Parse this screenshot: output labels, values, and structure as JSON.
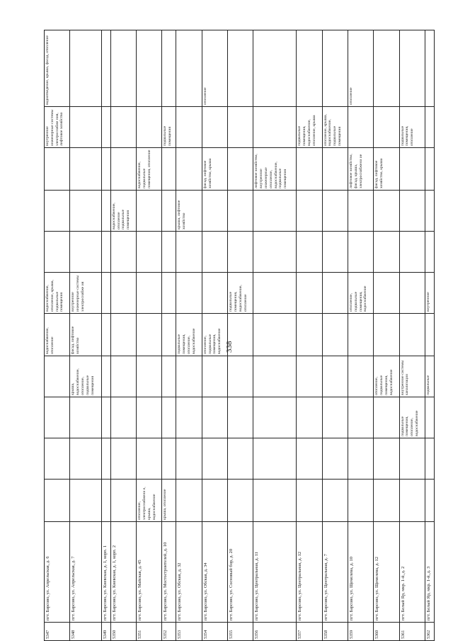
{
  "page_number": "338",
  "rows": [
    {
      "num": "5347",
      "address": "пгт. Барсово, ул. Апрельская, д. 6",
      "cells": [
        "",
        "",
        "",
        "",
        "водоснабжение, отопление",
        "водоснабжение, отопление, крыша, подвальные помещения",
        "",
        "",
        "",
        "внутренние инженерные системы электроснабже ния, лифтовое хозяйство",
        "водоотведение, крыша, фасад, отопление"
      ]
    },
    {
      "num": "5348",
      "address": "пгт. Барсово, ул. Апрельская, д. 7",
      "cells": [
        "",
        "",
        "",
        "крыша, водоснабжение, отопление, подвальные помещения",
        "фасад, лифтовое хозяйство",
        "внутренние инженерные системы электроснабже ия",
        "",
        "",
        "",
        "",
        ""
      ]
    },
    {
      "num": "5349",
      "address": "пгт. Барсово, ул. Киевская, д. 1, корп. 1",
      "cells": [
        "",
        "",
        "",
        "",
        "",
        "",
        "",
        "",
        "",
        "",
        ""
      ]
    },
    {
      "num": "5350",
      "address": "пгт. Барсово, ул. Киевская, д. 1, корп. 2",
      "cells": [
        "",
        "",
        "",
        "",
        "",
        "",
        "",
        "водоснабжение, отопление подвальные помещения",
        "",
        "",
        ""
      ]
    },
    {
      "num": "5351",
      "address": "пгт. Барсово, ул. Майская, д. 45",
      "cells": [
        "отопление, электроснабжени е, крыша, водоснабжение",
        "",
        "",
        "",
        "",
        "",
        "",
        "",
        "водоснабжение, подвальные помещения, отопление",
        "",
        ""
      ]
    },
    {
      "num": "5352",
      "address": "пгт. Барсово, ул. Мостостроителей, д. 10",
      "cells": [
        "крыша, отопление",
        "",
        "",
        "",
        "",
        "",
        "",
        "",
        "",
        "подвальные помещения",
        ""
      ]
    },
    {
      "num": "5353",
      "address": "пгт. Барсово, ул. Обская, д. 32",
      "cells": [
        "",
        "",
        "",
        "",
        "подвальные помещения, отопление, водоснабжение",
        "",
        "",
        "крыша, лифтовое хозяйство",
        "",
        "",
        ""
      ]
    },
    {
      "num": "5354",
      "address": "пгт. Барсово, ул. Обская, д. 34",
      "cells": [
        "",
        "",
        "",
        "",
        "отопление, подвальные помещения, водоснабжение",
        "",
        "",
        "",
        "фасад, лифтовое хозяйство, крыша",
        "",
        "отопление"
      ]
    },
    {
      "num": "5355",
      "address": "пгт. Барсово, ул. Сосновый бор, д. 20",
      "cells": [
        "",
        "",
        "",
        "",
        "",
        "подвальные помещения, водоснабжение, отопление",
        "",
        "",
        "",
        "",
        ""
      ]
    },
    {
      "num": "5356",
      "address": "пгт. Барсово, ул. Центральная, д. 11",
      "cells": [
        "",
        "",
        "",
        "",
        "",
        "",
        "",
        "",
        "лифтовое хозяйство, внутренние инженерные отопление, водоснабжение, подвальные помещения",
        "",
        ""
      ]
    },
    {
      "num": "5357",
      "address": "пгт. Барсово, ул. Центральная, д. 12",
      "cells": [
        "",
        "",
        "",
        "",
        "",
        "",
        "",
        "",
        "",
        "подвальные помещения, водоснабжение, отопление, крыша",
        ""
      ]
    },
    {
      "num": "5358",
      "address": "пгт. Барсово, ул. Центральная, д. 7",
      "cells": [
        "",
        "",
        "",
        "",
        "",
        "",
        "",
        "",
        "",
        "отопление, крыша, водоснабжение, подвальные помещения",
        ""
      ]
    },
    {
      "num": "5359",
      "address": "пгт. Барсово, ул. Щемелева, д. 10",
      "cells": [
        "",
        "",
        "",
        "",
        "",
        "отопление, подвальные помещения, водоснабжение",
        "",
        "",
        "лифтовое хозяйство, фасад, крыша, электроснабжени ие",
        "",
        "отопление"
      ]
    },
    {
      "num": "5360",
      "address": "пгт. Барсово, ул. Щемелева, д. 12",
      "cells": [
        "",
        "",
        "",
        "отопление, подвальные помещения, водоснабжение",
        "",
        "",
        "",
        "",
        "фасад, лифтовое хозяйство, крыша",
        "",
        ""
      ]
    },
    {
      "num": "5361",
      "address": "пгт. Белый Яр, мкр. 1-й, д. 2",
      "cells": [
        "",
        "",
        "подвальные помещения, отопление, водоснабжение",
        "внутренние системы канализации",
        "",
        "",
        "",
        "",
        "",
        "подвальные помещения, отопление",
        ""
      ]
    },
    {
      "num": "5362",
      "address": "пгт. Белый Яр, мкр. 1-й, д. 3",
      "cells": [
        "",
        "",
        "",
        "подвальные",
        "",
        "внутренние",
        "",
        "",
        "",
        "",
        ""
      ]
    }
  ]
}
